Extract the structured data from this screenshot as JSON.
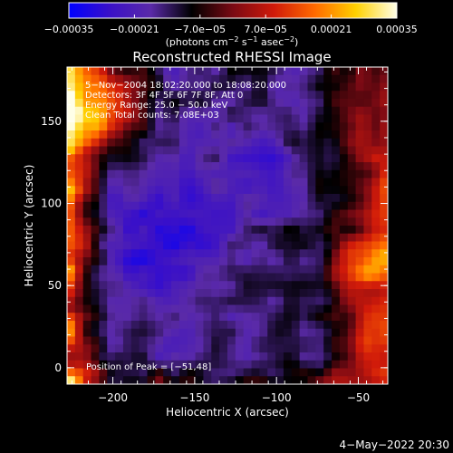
{
  "chart_data": {
    "type": "heatmap",
    "title": "Reconstructed RHESSI Image",
    "xlabel": "Heliocentric X (arcsec)",
    "ylabel": "Heliocentric Y (arcsec)",
    "xlim": [
      -228,
      -32
    ],
    "ylim": [
      -10,
      183
    ],
    "x_ticks": [
      -200,
      -150,
      -100,
      -50
    ],
    "y_ticks": [
      0,
      50,
      100,
      150
    ],
    "x_tick_labels": [
      "−200",
      "−150",
      "−100",
      "−50"
    ],
    "y_tick_labels": [
      "0",
      "50",
      "100",
      "150"
    ],
    "colorbar": {
      "range": [
        -0.00035,
        0.00035
      ],
      "ticks": [
        -0.00035,
        -0.00021,
        -7e-05,
        7e-05,
        0.00021,
        0.00035
      ],
      "tick_labels": [
        "−0.00035",
        "−0.00021",
        "−7.0e−05",
        "7.0e−05",
        "0.00021",
        "0.00035"
      ],
      "unit_main": "(photons cm",
      "unit_exp1": "−2",
      "unit_mid": " s",
      "unit_exp2": "−1",
      "unit_mid2": " asec",
      "unit_exp3": "−2",
      "unit_end": ")",
      "colormap": [
        "#0000ff",
        "#3a10c8",
        "#5a2aa8",
        "#000000",
        "#7a0a14",
        "#d01a0a",
        "#ff6a00",
        "#ffd000",
        "#ffffe8"
      ]
    },
    "info_lines": [
      "5−Nov−2004 18:02:20.000 to 18:08:20.000",
      "Detectors: 3F 4F 5F 6F 7F 8F, Att 0",
      "Energy Range: 25.0 − 50.0 keV",
      "Clean     Total counts: 7.08E+03"
    ],
    "peak_label": "Position of Peak = [−51,48]",
    "peak": [
      -51,
      48
    ],
    "timestamp": "4−May−2022 20:30"
  }
}
